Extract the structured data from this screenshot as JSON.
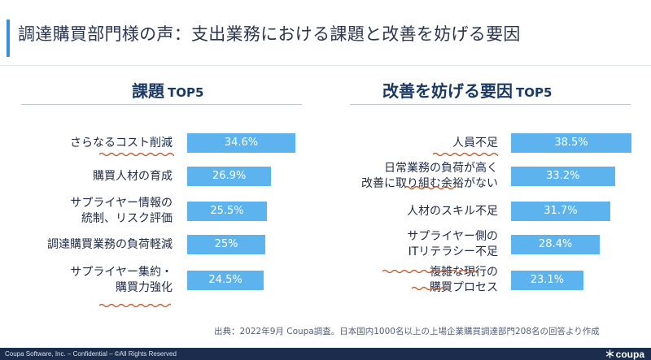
{
  "slide": {
    "title": "調達購買部門様の声：支出業務における課題と改善を妨げる要因"
  },
  "left": {
    "heading": "課題",
    "heading_suffix": "TOP5"
  },
  "right": {
    "heading": "改善を妨げる要因",
    "heading_suffix": "TOP5"
  },
  "chart_data": [
    {
      "type": "bar",
      "orientation": "horizontal",
      "title": "課題 TOP5",
      "categories": [
        "さらなるコスト削減",
        "購買人材の育成",
        "サプライヤー情報の統制、リスク評価",
        "調達購買業務の負荷軽減",
        "サプライヤー集約・購買力強化"
      ],
      "category_lines": [
        [
          "さらなるコスト削減"
        ],
        [
          "購買人材の育成"
        ],
        [
          "サプライヤー情報の",
          "統制、リスク評価"
        ],
        [
          "調達購買業務の負荷軽減"
        ],
        [
          "サプライヤー集約・",
          "購買力強化"
        ]
      ],
      "values": [
        34.6,
        26.9,
        25.5,
        25,
        24.5
      ],
      "value_labels": [
        "34.6%",
        "26.9%",
        "25.5%",
        "25%",
        "24.5%"
      ],
      "bar_color": "#5cb3ee",
      "grid": false
    },
    {
      "type": "bar",
      "orientation": "horizontal",
      "title": "改善を妨げる要因 TOP5",
      "categories": [
        "人員不足",
        "日常業務の負荷が高く改善に取り組む余裕がない",
        "人材のスキル不足",
        "サプライヤー側のITリテラシー不足",
        "複雑な現行の購買プロセス"
      ],
      "category_lines": [
        [
          "人員不足"
        ],
        [
          "日常業務の負荷が高く",
          "改善に取り組む余裕がない"
        ],
        [
          "人材のスキル不足"
        ],
        [
          "サプライヤー側の",
          "ITリテラシー不足"
        ],
        [
          "複雑な現行の",
          "購買プロセス"
        ]
      ],
      "values": [
        38.5,
        33.2,
        31.7,
        28.4,
        23.1
      ],
      "value_labels": [
        "38.5%",
        "33.2%",
        "31.7%",
        "28.4%",
        "23.1%"
      ],
      "bar_color": "#5cb3ee",
      "grid": false
    }
  ],
  "source": "出典：2022年9月 Coupa調査。日本国内1000名以上の上場企業購買調達部門208名の回答より作成",
  "footer": {
    "text": "Coupa Software, Inc. – Confidential – ©All Rights Reserved",
    "logo_text": "coupa",
    "logo_icon": "coupa-flake-icon"
  },
  "colors": {
    "bar": "#5cb3ee",
    "accent": "#3a8fd8",
    "heading": "#1c3a66",
    "squiggle": "#c0643a",
    "footer": "#1b2c4d"
  }
}
